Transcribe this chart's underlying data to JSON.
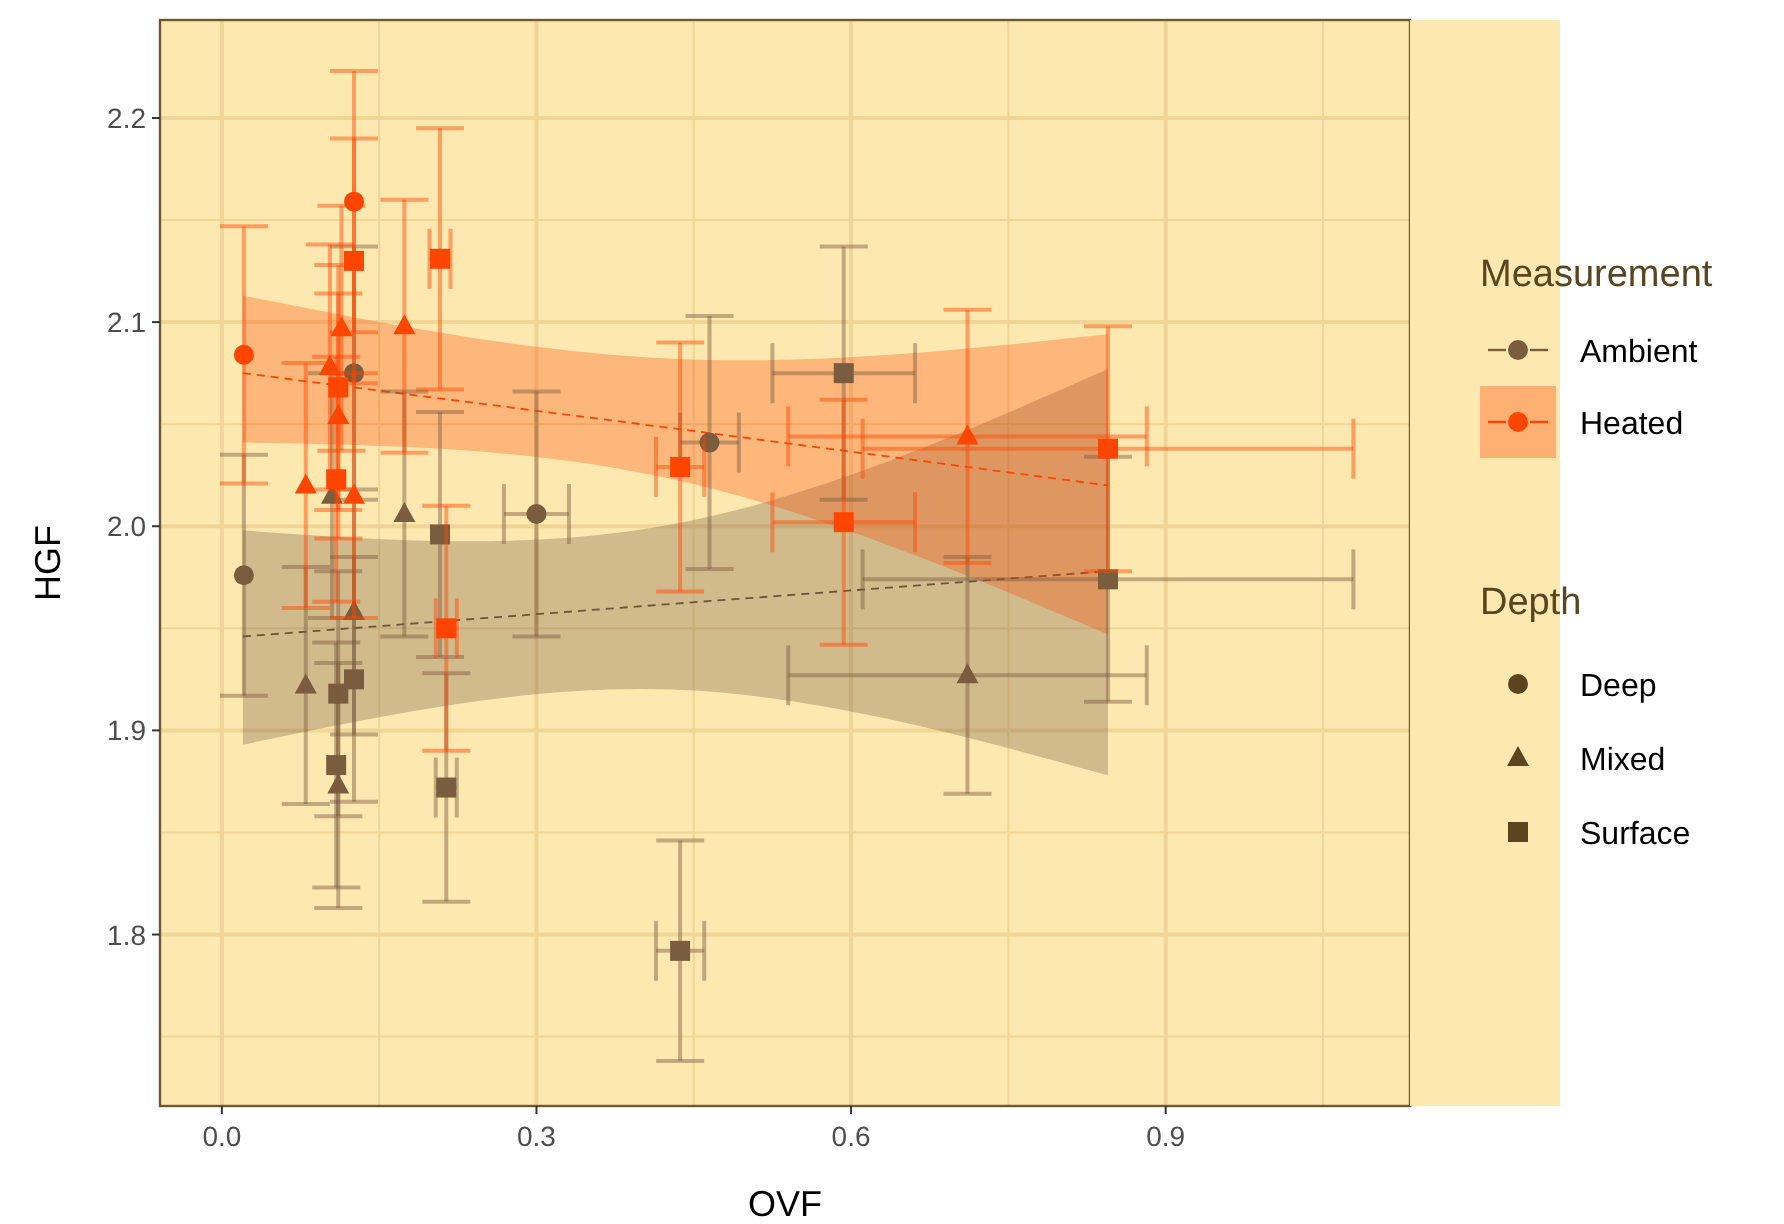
{
  "chart_data": {
    "type": "scatter",
    "xlabel": "OVF",
    "ylabel": "HGF",
    "legend_title": [
      "Measurement",
      "Depth"
    ],
    "annotations": [
      "Deep",
      "Mixed",
      "Surface"
    ],
    "xlim": [
      -0.059,
      1.133
    ],
    "xticks": [
      {
        "value": 0,
        "label": "0.0"
      },
      {
        "value": 0.15,
        "label": null
      },
      0.3,
      {
        "value": 0.45,
        "label": null
      },
      0.6,
      {
        "value": 0.75,
        "label": null
      },
      0.9,
      {
        "value": 1.05,
        "label": null
      }
    ],
    "ylim": [
      1.716,
      2.248
    ],
    "yticks": [
      {
        "value": 1.75,
        "label": null
      },
      1.8,
      {
        "value": 1.85,
        "label": null
      },
      1.9,
      {
        "value": 1.95,
        "label": null
      },
      {
        "value": 2,
        "label": "2.0"
      },
      {
        "value": 2.05,
        "label": null
      },
      2.1,
      {
        "value": 2.15,
        "label": null
      },
      2.2
    ],
    "grid": true,
    "legend": "right",
    "series": [
      {
        "type": "line",
        "line_style": "dashed",
        "marker": "none",
        "color": "#6e5438",
        "x": [
          0.02,
          0.43,
          0.845
        ],
        "values": [
          1.946,
          1.962,
          1.978
        ],
        "lower": [
          1.893,
          1.92,
          1.878
        ],
        "upper": [
          1.998,
          2.001,
          2.077
        ]
      },
      {
        "type": "line",
        "line_style": "dashed",
        "marker": "none",
        "color": "#ff4500",
        "x": [
          0.02,
          0.43,
          0.845
        ],
        "values": [
          2.075,
          2.048,
          2.02
        ],
        "lower": [
          2.041,
          2.023,
          1.947
        ],
        "upper": [
          2.113,
          2.082,
          2.094
        ]
      },
      {
        "name": "Ambient",
        "marker": "circle",
        "color": "#7a5c3e",
        "x": [
          0.021,
          0.126,
          0.3,
          0.465
        ],
        "values": [
          1.976,
          2.075,
          2.006,
          2.041
        ],
        "errors": [
          0.059,
          0.062,
          0.06,
          0.062
        ],
        "xerrors": [
          null,
          null,
          0.031,
          0.028
        ]
      },
      {
        "marker": "triangle",
        "color": "#7a5c3e",
        "x": [
          0.08,
          0.174,
          0.105,
          0.126,
          0.111,
          0.711
        ],
        "values": [
          1.922,
          2.006,
          2.015,
          1.958,
          1.873,
          1.927
        ],
        "errors": [
          0.058,
          0.06,
          0.06,
          0.06,
          0.06,
          0.058
        ],
        "xerrors": [
          null,
          null,
          null,
          null,
          null,
          0.171
        ]
      },
      {
        "marker": "square",
        "color": "#7a5c3e",
        "x": [
          0.208,
          0.126,
          0.111,
          0.109,
          0.214,
          0.437,
          0.593,
          0.845
        ],
        "values": [
          1.996,
          1.925,
          1.918,
          1.883,
          1.872,
          1.792,
          2.075,
          1.974
        ],
        "errors": [
          0.06,
          0.06,
          0.06,
          0.06,
          0.056,
          0.054,
          0.062,
          0.06
        ],
        "xerrors": [
          null,
          null,
          null,
          null,
          0.01,
          0.023,
          0.068,
          0.234
        ]
      },
      {
        "name": "Heated",
        "marker": "circle",
        "color": "#ff4500",
        "x": [
          0.021,
          0.126
        ],
        "values": [
          2.084,
          2.159
        ],
        "errors": [
          0.063,
          0.064
        ],
        "xerrors": [
          null,
          null
        ]
      },
      {
        "marker": "triangle",
        "color": "#ff4500",
        "x": [
          0.114,
          0.174,
          0.103,
          0.111,
          0.08,
          0.126,
          0.711
        ],
        "values": [
          2.097,
          2.098,
          2.078,
          2.054,
          2.02,
          2.015,
          2.044
        ],
        "errors": [
          0.06,
          0.062,
          0.06,
          0.06,
          0.06,
          0.06,
          0.062
        ],
        "xerrors": [
          null,
          null,
          null,
          null,
          null,
          null,
          0.171
        ]
      },
      {
        "marker": "square",
        "color": "#ff4500",
        "x": [
          0.126,
          0.208,
          0.111,
          0.109,
          0.214,
          0.437,
          0.593,
          0.845
        ],
        "values": [
          2.13,
          2.131,
          2.068,
          2.023,
          1.95,
          2.029,
          2.002,
          2.038
        ],
        "errors": [
          0.06,
          0.064,
          0.06,
          0.06,
          0.06,
          0.061,
          0.06,
          0.06
        ],
        "xerrors": [
          null,
          0.01,
          null,
          null,
          0.01,
          0.023,
          0.068,
          0.234
        ]
      }
    ]
  }
}
